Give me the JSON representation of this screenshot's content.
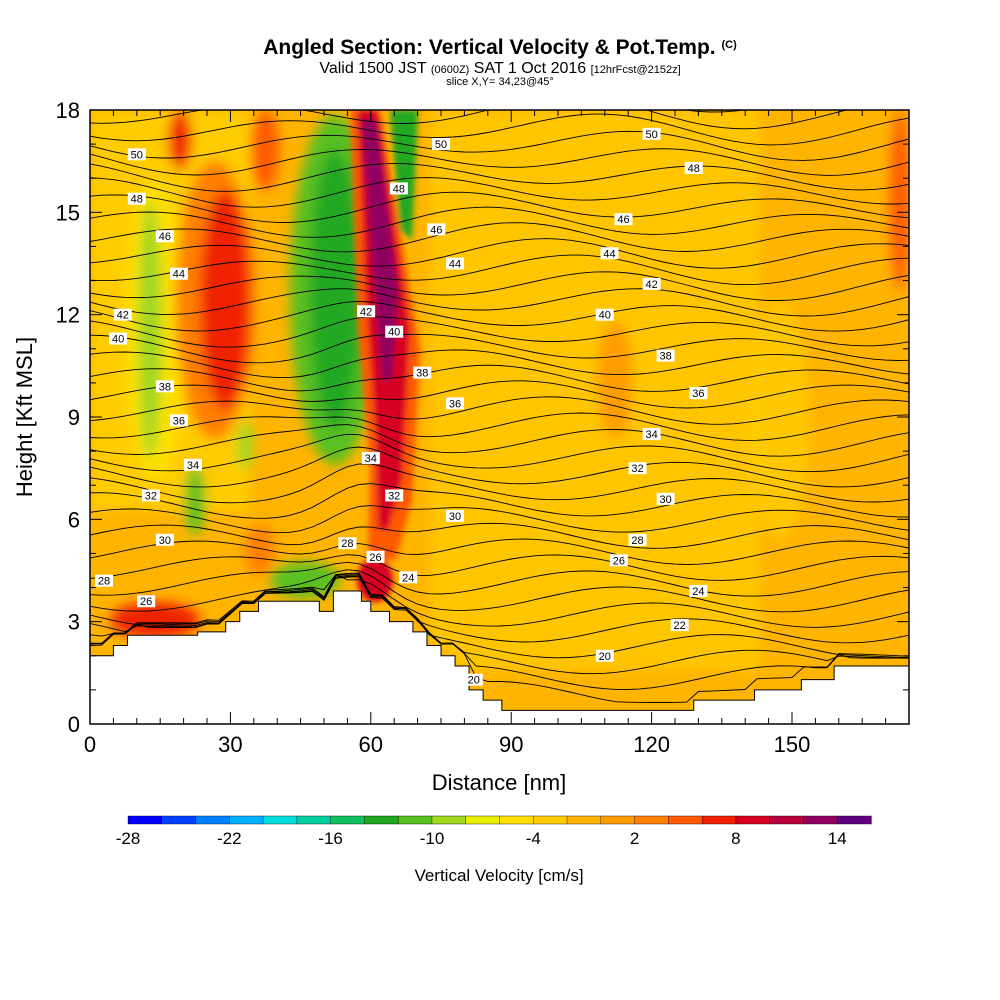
{
  "header": {
    "title": "Angled Section: Vertical Velocity & Pot.Temp.",
    "title_unit": "(C)",
    "valid_prefix": "Valid 1500 JST",
    "valid_utc": "(0600Z)",
    "valid_date": "SAT 1 Oct 2016",
    "forecast": "[12hrFcst@2152z]",
    "slice": "slice X,Y= 34,23@45°"
  },
  "chart_data": {
    "type": "heatmap",
    "xlabel": "Distance [nm]",
    "ylabel": "Height [Kft MSL]",
    "xlim": [
      0,
      175
    ],
    "ylim": [
      0,
      18
    ],
    "x_ticks": [
      0,
      30,
      60,
      90,
      120,
      150
    ],
    "y_ticks": [
      0,
      3,
      6,
      9,
      12,
      15,
      18
    ],
    "colorbar": {
      "label": "Vertical Velocity [cm/s]",
      "tick_labels": [
        "-28",
        "-22",
        "-16",
        "-10",
        "-4",
        "2",
        "8",
        "14"
      ],
      "colors": [
        "#0000ff",
        "#0040ff",
        "#0080ff",
        "#00b0ff",
        "#00e0e0",
        "#00d0a0",
        "#10c060",
        "#20a820",
        "#58c020",
        "#a0d820",
        "#e8f000",
        "#ffe000",
        "#ffcc00",
        "#ffb400",
        "#ff9c00",
        "#ff8000",
        "#ff5a00",
        "#f02000",
        "#d80020",
        "#b80040",
        "#900060",
        "#600080"
      ]
    },
    "terrain": [
      [
        0,
        2
      ],
      [
        5,
        2
      ],
      [
        5,
        2.3
      ],
      [
        8,
        2.3
      ],
      [
        8,
        2.6
      ],
      [
        23,
        2.6
      ],
      [
        23,
        2.7
      ],
      [
        29,
        2.7
      ],
      [
        29,
        3
      ],
      [
        32,
        3
      ],
      [
        32,
        3.3
      ],
      [
        36,
        3.3
      ],
      [
        36,
        3.6
      ],
      [
        49,
        3.6
      ],
      [
        49,
        3.3
      ],
      [
        52,
        3.3
      ],
      [
        52,
        3.9
      ],
      [
        58,
        3.9
      ],
      [
        58,
        3.6
      ],
      [
        60,
        3.6
      ],
      [
        60,
        3.3
      ],
      [
        64,
        3.3
      ],
      [
        64,
        3
      ],
      [
        69,
        3
      ],
      [
        69,
        2.7
      ],
      [
        72,
        2.7
      ],
      [
        72,
        2.3
      ],
      [
        75,
        2.3
      ],
      [
        75,
        2
      ],
      [
        78,
        2
      ],
      [
        78,
        1.7
      ],
      [
        81,
        1.7
      ],
      [
        81,
        1
      ],
      [
        84,
        1
      ],
      [
        84,
        0.7
      ],
      [
        88,
        0.7
      ],
      [
        88,
        0.4
      ],
      [
        129,
        0.4
      ],
      [
        129,
        0.7
      ],
      [
        142,
        0.7
      ],
      [
        142,
        1
      ],
      [
        152,
        1
      ],
      [
        152,
        1.3
      ],
      [
        159,
        1.3
      ],
      [
        159,
        1.7
      ],
      [
        175,
        1.7
      ]
    ],
    "contour_labels": [
      {
        "text": "50",
        "x": 10,
        "y": 16.7
      },
      {
        "text": "48",
        "x": 10,
        "y": 15.4
      },
      {
        "text": "46",
        "x": 16,
        "y": 14.3
      },
      {
        "text": "44",
        "x": 19,
        "y": 13.2
      },
      {
        "text": "42",
        "x": 7,
        "y": 12
      },
      {
        "text": "40",
        "x": 6,
        "y": 11.3
      },
      {
        "text": "38",
        "x": 16,
        "y": 9.9
      },
      {
        "text": "36",
        "x": 19,
        "y": 8.9
      },
      {
        "text": "34",
        "x": 22,
        "y": 7.6
      },
      {
        "text": "32",
        "x": 13,
        "y": 6.7
      },
      {
        "text": "30",
        "x": 16,
        "y": 5.4
      },
      {
        "text": "28",
        "x": 3,
        "y": 4.2
      },
      {
        "text": "26",
        "x": 12,
        "y": 3.6
      },
      {
        "text": "50",
        "x": 75,
        "y": 17
      },
      {
        "text": "48",
        "x": 66,
        "y": 15.7
      },
      {
        "text": "46",
        "x": 74,
        "y": 14.5
      },
      {
        "text": "44",
        "x": 78,
        "y": 13.5
      },
      {
        "text": "42",
        "x": 59,
        "y": 12.1
      },
      {
        "text": "40",
        "x": 65,
        "y": 11.5
      },
      {
        "text": "38",
        "x": 71,
        "y": 10.3
      },
      {
        "text": "36",
        "x": 78,
        "y": 9.4
      },
      {
        "text": "34",
        "x": 60,
        "y": 7.8
      },
      {
        "text": "32",
        "x": 65,
        "y": 6.7
      },
      {
        "text": "30",
        "x": 78,
        "y": 6.1
      },
      {
        "text": "28",
        "x": 55,
        "y": 5.3
      },
      {
        "text": "26",
        "x": 61,
        "y": 4.9
      },
      {
        "text": "24",
        "x": 68,
        "y": 4.3
      },
      {
        "text": "20",
        "x": 82,
        "y": 1.3
      },
      {
        "text": "50",
        "x": 120,
        "y": 17.3
      },
      {
        "text": "48",
        "x": 129,
        "y": 16.3
      },
      {
        "text": "46",
        "x": 114,
        "y": 14.8
      },
      {
        "text": "44",
        "x": 111,
        "y": 13.8
      },
      {
        "text": "42",
        "x": 120,
        "y": 12.9
      },
      {
        "text": "40",
        "x": 110,
        "y": 12
      },
      {
        "text": "38",
        "x": 123,
        "y": 10.8
      },
      {
        "text": "36",
        "x": 130,
        "y": 9.7
      },
      {
        "text": "34",
        "x": 120,
        "y": 8.5
      },
      {
        "text": "32",
        "x": 117,
        "y": 7.5
      },
      {
        "text": "30",
        "x": 123,
        "y": 6.6
      },
      {
        "text": "28",
        "x": 117,
        "y": 5.4
      },
      {
        "text": "26",
        "x": 113,
        "y": 4.8
      },
      {
        "text": "24",
        "x": 130,
        "y": 3.9
      },
      {
        "text": "22",
        "x": 126,
        "y": 2.9
      },
      {
        "text": "20",
        "x": 110,
        "y": 2
      }
    ]
  }
}
